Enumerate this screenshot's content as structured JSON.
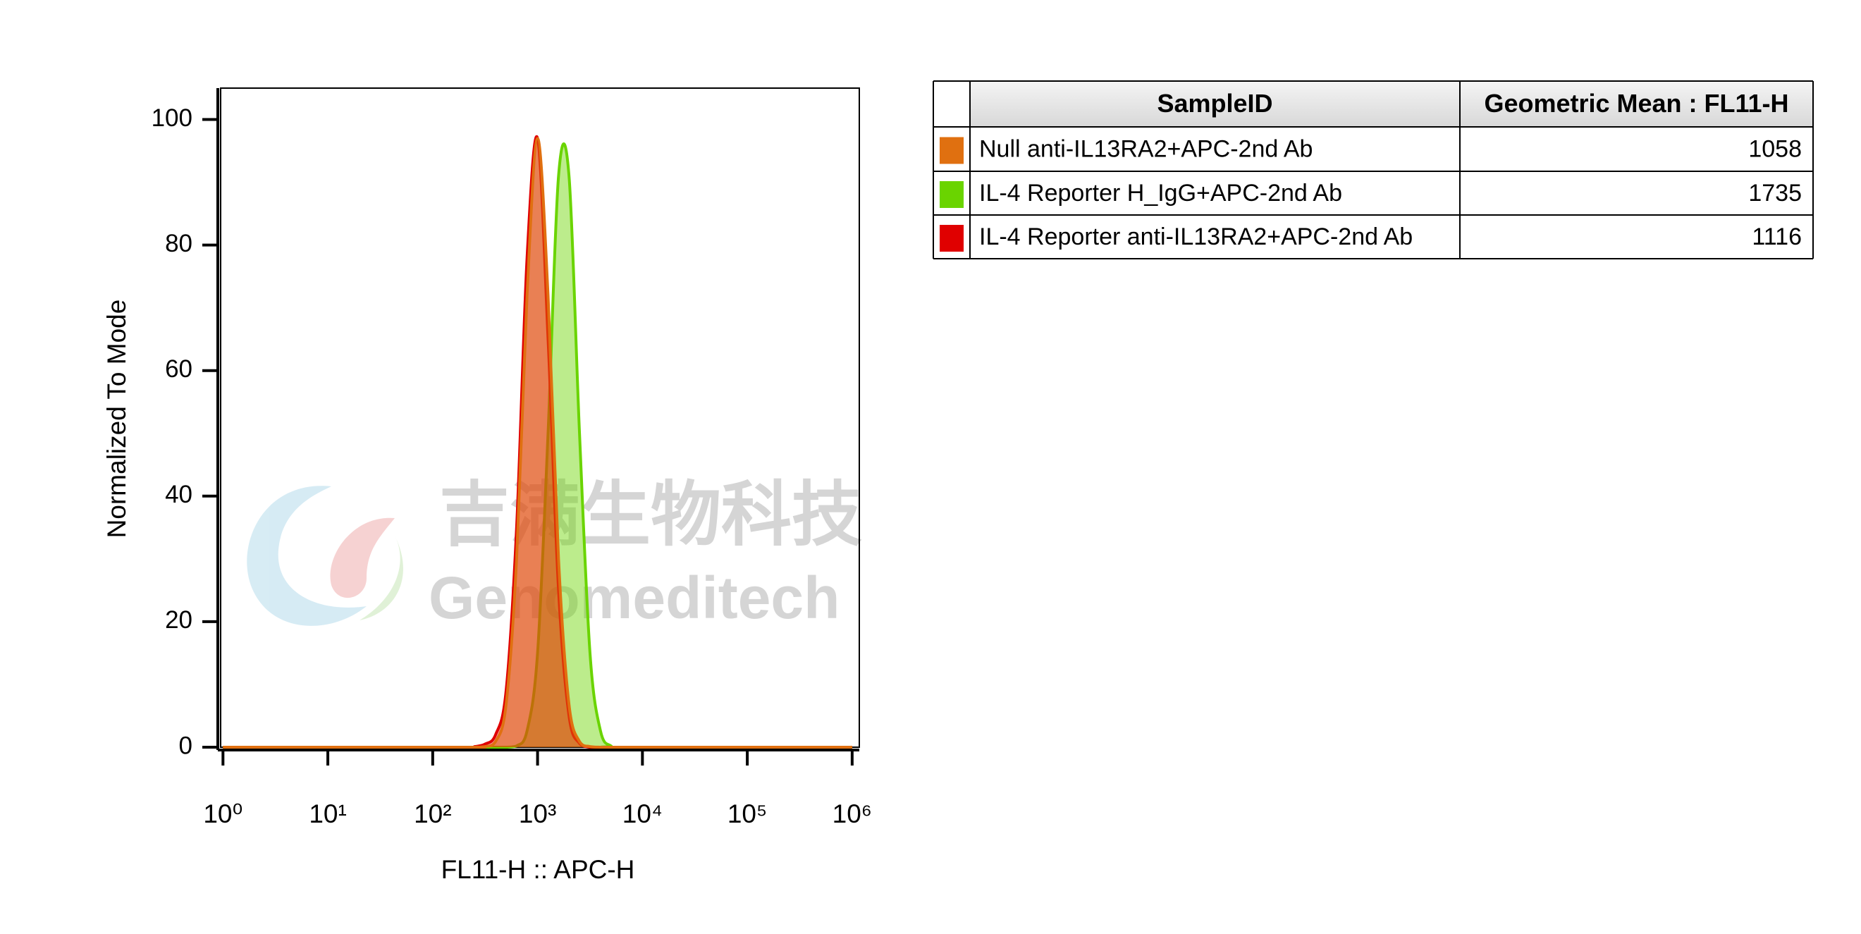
{
  "chart_data": {
    "type": "area",
    "xlabel": "FL11-H :: APC-H",
    "ylabel": "Normalized To Mode",
    "xscale": "log",
    "x": [
      1,
      200,
      251,
      316,
      398,
      501,
      631,
      794,
      1000,
      1259,
      1585,
      1995,
      2512,
      3162,
      3981,
      5012,
      6310,
      1000000
    ],
    "series": [
      {
        "name": "Null anti-IL13RA2+APC-2nd Ab",
        "color": "#e07010",
        "values": [
          0,
          0,
          0,
          0.1,
          0.9,
          6.8,
          30,
          72,
          97,
          72,
          30,
          6.8,
          0.9,
          0.1,
          0,
          0,
          0,
          0
        ]
      },
      {
        "name": "IL-4 Reporter H_IgG+APC-2nd Ab",
        "color": "#6ad400",
        "values": [
          0,
          0,
          0,
          0,
          0,
          0,
          0.2,
          2.6,
          15,
          50,
          91,
          91,
          50,
          15,
          2.6,
          0.2,
          0,
          0
        ]
      },
      {
        "name": "IL-4 Reporter anti-IL13RA2+APC-2nd Ab",
        "color": "#e00000",
        "values": [
          0,
          0,
          0.1,
          0.5,
          2,
          9,
          35,
          78,
          97,
          65,
          25,
          5,
          0.6,
          0,
          0,
          0,
          0,
          0
        ]
      }
    ],
    "xlim": [
      0.95,
      1170000
    ],
    "xticks": [
      {
        "value": 1,
        "label": "10⁰"
      },
      {
        "value": 10,
        "label": "10¹"
      },
      {
        "value": 100,
        "label": "10²"
      },
      {
        "value": 1000,
        "label": "10³"
      },
      {
        "value": 10000,
        "label": "10⁴"
      },
      {
        "value": 100000,
        "label": "10⁵"
      },
      {
        "value": 1000000,
        "label": "10⁶"
      }
    ],
    "ylim": [
      0,
      105
    ],
    "yticks": [
      0,
      20,
      40,
      60,
      80,
      100
    ]
  },
  "table": {
    "columns": [
      "SampleID",
      "Geometric Mean : FL11-H"
    ],
    "values": [
      1058,
      1735,
      1116
    ]
  },
  "watermark": {
    "cn": "吉满生物科技",
    "en": "Genomeditech"
  }
}
